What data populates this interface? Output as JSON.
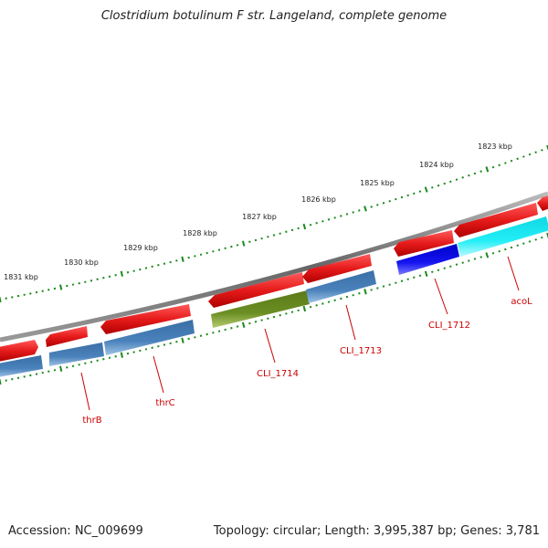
{
  "title": "Clostridium botulinum F str. Langeland, complete genome",
  "footer": {
    "accession": "Accession: NC_009699",
    "summary": "Topology: circular; Length: 3,995,387 bp; Genes: 3,781"
  },
  "scale_labels": [
    "1823 kbp",
    "1824 kbp",
    "1825 kbp",
    "1826 kbp",
    "1827 kbp",
    "1828 kbp",
    "1829 kbp",
    "1830 kbp",
    "1831 kbp"
  ],
  "gene_labels": [
    "acoL",
    "CLI_1712",
    "CLI_1713",
    "CLI_1714",
    "thrC",
    "thrB"
  ],
  "colors": {
    "backbone": "#777777",
    "ticks": "#1a8a1a",
    "cds_forward": "#e61b1b",
    "gene_reverse": "#4a7fb5",
    "highlight_olive": "#6b8e23",
    "highlight_blue": "#1010e0",
    "highlight_cyan": "#22e5ee",
    "label": "#cc0000"
  }
}
